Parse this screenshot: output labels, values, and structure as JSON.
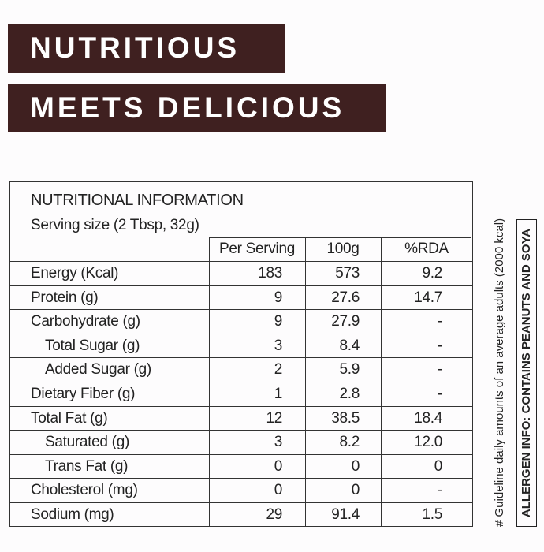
{
  "banner": {
    "lines": [
      "NUTRITIOUS",
      "MEETS DELICIOUS"
    ]
  },
  "table": {
    "title": "NUTRITIONAL INFORMATION",
    "serving": "Serving size (2 Tbsp, 32g)",
    "headers": [
      "Per Serving",
      "100g",
      "%RDA"
    ],
    "rows": [
      {
        "label": "Energy (Kcal)",
        "values": [
          "183",
          "573",
          "9.2"
        ],
        "level": 0
      },
      {
        "label": "Protein (g)",
        "values": [
          "9",
          "27.6",
          "14.7"
        ],
        "level": 0
      },
      {
        "label": "Carbohydrate (g)",
        "values": [
          "9",
          "27.9",
          "-"
        ],
        "level": 0
      },
      {
        "label": "Total Sugar (g)",
        "values": [
          "3",
          "8.4",
          "-"
        ],
        "level": 1
      },
      {
        "label": "Added Sugar (g)",
        "values": [
          "2",
          "5.9",
          "-"
        ],
        "level": 1
      },
      {
        "label": "Dietary Fiber (g)",
        "values": [
          "1",
          "2.8",
          "-"
        ],
        "level": 0
      },
      {
        "label": "Total Fat (g)",
        "values": [
          "12",
          "38.5",
          "18.4"
        ],
        "level": 0
      },
      {
        "label": "Saturated (g)",
        "values": [
          "3",
          "8.2",
          "12.0"
        ],
        "level": 1
      },
      {
        "label": "Trans Fat (g)",
        "values": [
          "0",
          "0",
          "0"
        ],
        "level": 1
      },
      {
        "label": "Cholesterol (mg)",
        "values": [
          "0",
          "0",
          "-"
        ],
        "level": 0
      },
      {
        "label": "Sodium (mg)",
        "values": [
          "29",
          "91.4",
          "1.5"
        ],
        "level": 0
      }
    ]
  },
  "footnote": "# Guideline daily amounts of an average adults (2000 kcal)",
  "allergen": "ALLERGEN INFO: CONTAINS PEANUTS AND SOYA"
}
